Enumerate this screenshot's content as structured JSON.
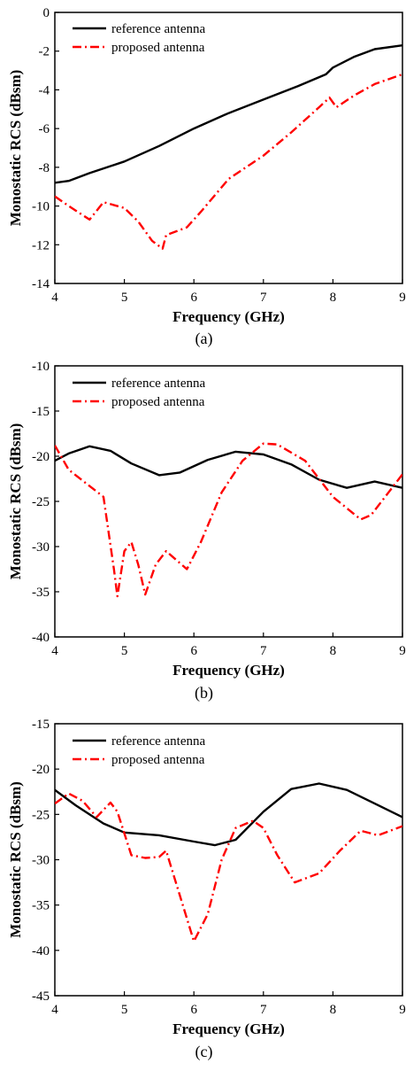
{
  "chart_data": [
    {
      "type": "line",
      "caption": "(a)",
      "xlabel": "Frequency (GHz)",
      "ylabel": "Monostatic RCS (dBsm)",
      "xlim": [
        4,
        9
      ],
      "ylim": [
        -14,
        0
      ],
      "xticks": [
        4,
        5,
        6,
        7,
        8,
        9
      ],
      "yticks": [
        0,
        -2,
        -4,
        -6,
        -8,
        -10,
        -12,
        -14
      ],
      "legend_position": "top-left",
      "series": [
        {
          "name": "reference antenna",
          "color": "#000000",
          "dash": "solid",
          "x": [
            4.0,
            4.2,
            4.5,
            5.0,
            5.5,
            6.0,
            6.5,
            7.0,
            7.5,
            7.9,
            8.0,
            8.3,
            8.6,
            9.0
          ],
          "y": [
            -8.8,
            -8.7,
            -8.3,
            -7.7,
            -6.9,
            -6.0,
            -5.2,
            -4.5,
            -3.8,
            -3.2,
            -2.85,
            -2.3,
            -1.9,
            -1.7
          ]
        },
        {
          "name": "proposed antenna",
          "color": "#ff0000",
          "dash": "dashdot",
          "x": [
            4.0,
            4.2,
            4.5,
            4.7,
            4.8,
            5.0,
            5.2,
            5.4,
            5.55,
            5.6,
            5.9,
            6.1,
            6.5,
            7.0,
            7.4,
            7.8,
            7.95,
            8.05,
            8.3,
            8.6,
            9.0
          ],
          "y": [
            -9.5,
            -10.0,
            -10.7,
            -9.8,
            -9.9,
            -10.1,
            -10.8,
            -11.8,
            -12.2,
            -11.5,
            -11.1,
            -10.3,
            -8.6,
            -7.4,
            -6.2,
            -4.9,
            -4.4,
            -4.9,
            -4.3,
            -3.7,
            -3.2
          ]
        }
      ]
    },
    {
      "type": "line",
      "caption": "(b)",
      "xlabel": "Frequency (GHz)",
      "ylabel": "Monostatic RCS (dBsm)",
      "xlim": [
        4,
        9
      ],
      "ylim": [
        -40,
        -10
      ],
      "xticks": [
        4,
        5,
        6,
        7,
        8,
        9
      ],
      "yticks": [
        -10,
        -15,
        -20,
        -25,
        -30,
        -35,
        -40
      ],
      "legend_position": "top-left",
      "series": [
        {
          "name": "reference antenna",
          "color": "#000000",
          "dash": "solid",
          "x": [
            4.0,
            4.2,
            4.5,
            4.8,
            5.1,
            5.5,
            5.8,
            6.2,
            6.6,
            7.0,
            7.4,
            7.8,
            8.2,
            8.6,
            9.0
          ],
          "y": [
            -20.5,
            -19.7,
            -18.9,
            -19.4,
            -20.8,
            -22.1,
            -21.8,
            -20.4,
            -19.5,
            -19.8,
            -20.9,
            -22.6,
            -23.5,
            -22.8,
            -23.5
          ]
        },
        {
          "name": "proposed antenna",
          "color": "#ff0000",
          "dash": "dashdot",
          "x": [
            4.0,
            4.2,
            4.5,
            4.7,
            4.85,
            4.9,
            5.0,
            5.1,
            5.2,
            5.3,
            5.45,
            5.6,
            5.75,
            5.9,
            6.1,
            6.4,
            6.7,
            7.0,
            7.2,
            7.6,
            8.0,
            8.4,
            8.55,
            8.8,
            9.0
          ],
          "y": [
            -18.8,
            -21.5,
            -23.3,
            -24.5,
            -32.5,
            -35.5,
            -30.5,
            -29.5,
            -32.0,
            -35.3,
            -32.0,
            -30.5,
            -31.5,
            -32.5,
            -29.5,
            -24.0,
            -20.5,
            -18.6,
            -18.7,
            -20.5,
            -24.5,
            -27.0,
            -26.5,
            -24.0,
            -22.0
          ]
        }
      ]
    },
    {
      "type": "line",
      "caption": "(c)",
      "xlabel": "Frequency (GHz)",
      "ylabel": "Monostatic RCS (dBsm)",
      "xlim": [
        4,
        9
      ],
      "ylim": [
        -45,
        -15
      ],
      "xticks": [
        4,
        5,
        6,
        7,
        8,
        9
      ],
      "yticks": [
        -15,
        -20,
        -25,
        -30,
        -35,
        -40,
        -45
      ],
      "legend_position": "top-left",
      "series": [
        {
          "name": "reference antenna",
          "color": "#000000",
          "dash": "solid",
          "x": [
            4.0,
            4.3,
            4.7,
            5.0,
            5.5,
            6.0,
            6.3,
            6.6,
            7.0,
            7.4,
            7.8,
            8.2,
            8.6,
            9.0
          ],
          "y": [
            -22.3,
            -24.0,
            -26.0,
            -27.0,
            -27.3,
            -28.0,
            -28.4,
            -27.8,
            -24.7,
            -22.2,
            -21.6,
            -22.3,
            -23.8,
            -25.3
          ]
        },
        {
          "name": "proposed antenna",
          "color": "#ff0000",
          "dash": "dashdot",
          "x": [
            4.0,
            4.2,
            4.4,
            4.6,
            4.8,
            4.9,
            5.1,
            5.3,
            5.5,
            5.6,
            5.8,
            6.0,
            6.2,
            6.4,
            6.6,
            6.85,
            7.0,
            7.2,
            7.45,
            7.8,
            8.1,
            8.4,
            8.65,
            9.0
          ],
          "y": [
            -23.8,
            -22.7,
            -23.5,
            -25.3,
            -23.7,
            -24.7,
            -29.5,
            -29.8,
            -29.7,
            -29.0,
            -34.0,
            -39.0,
            -36.0,
            -30.0,
            -26.5,
            -25.7,
            -26.5,
            -29.5,
            -32.5,
            -31.5,
            -29.0,
            -26.8,
            -27.3,
            -26.3
          ]
        }
      ]
    }
  ]
}
